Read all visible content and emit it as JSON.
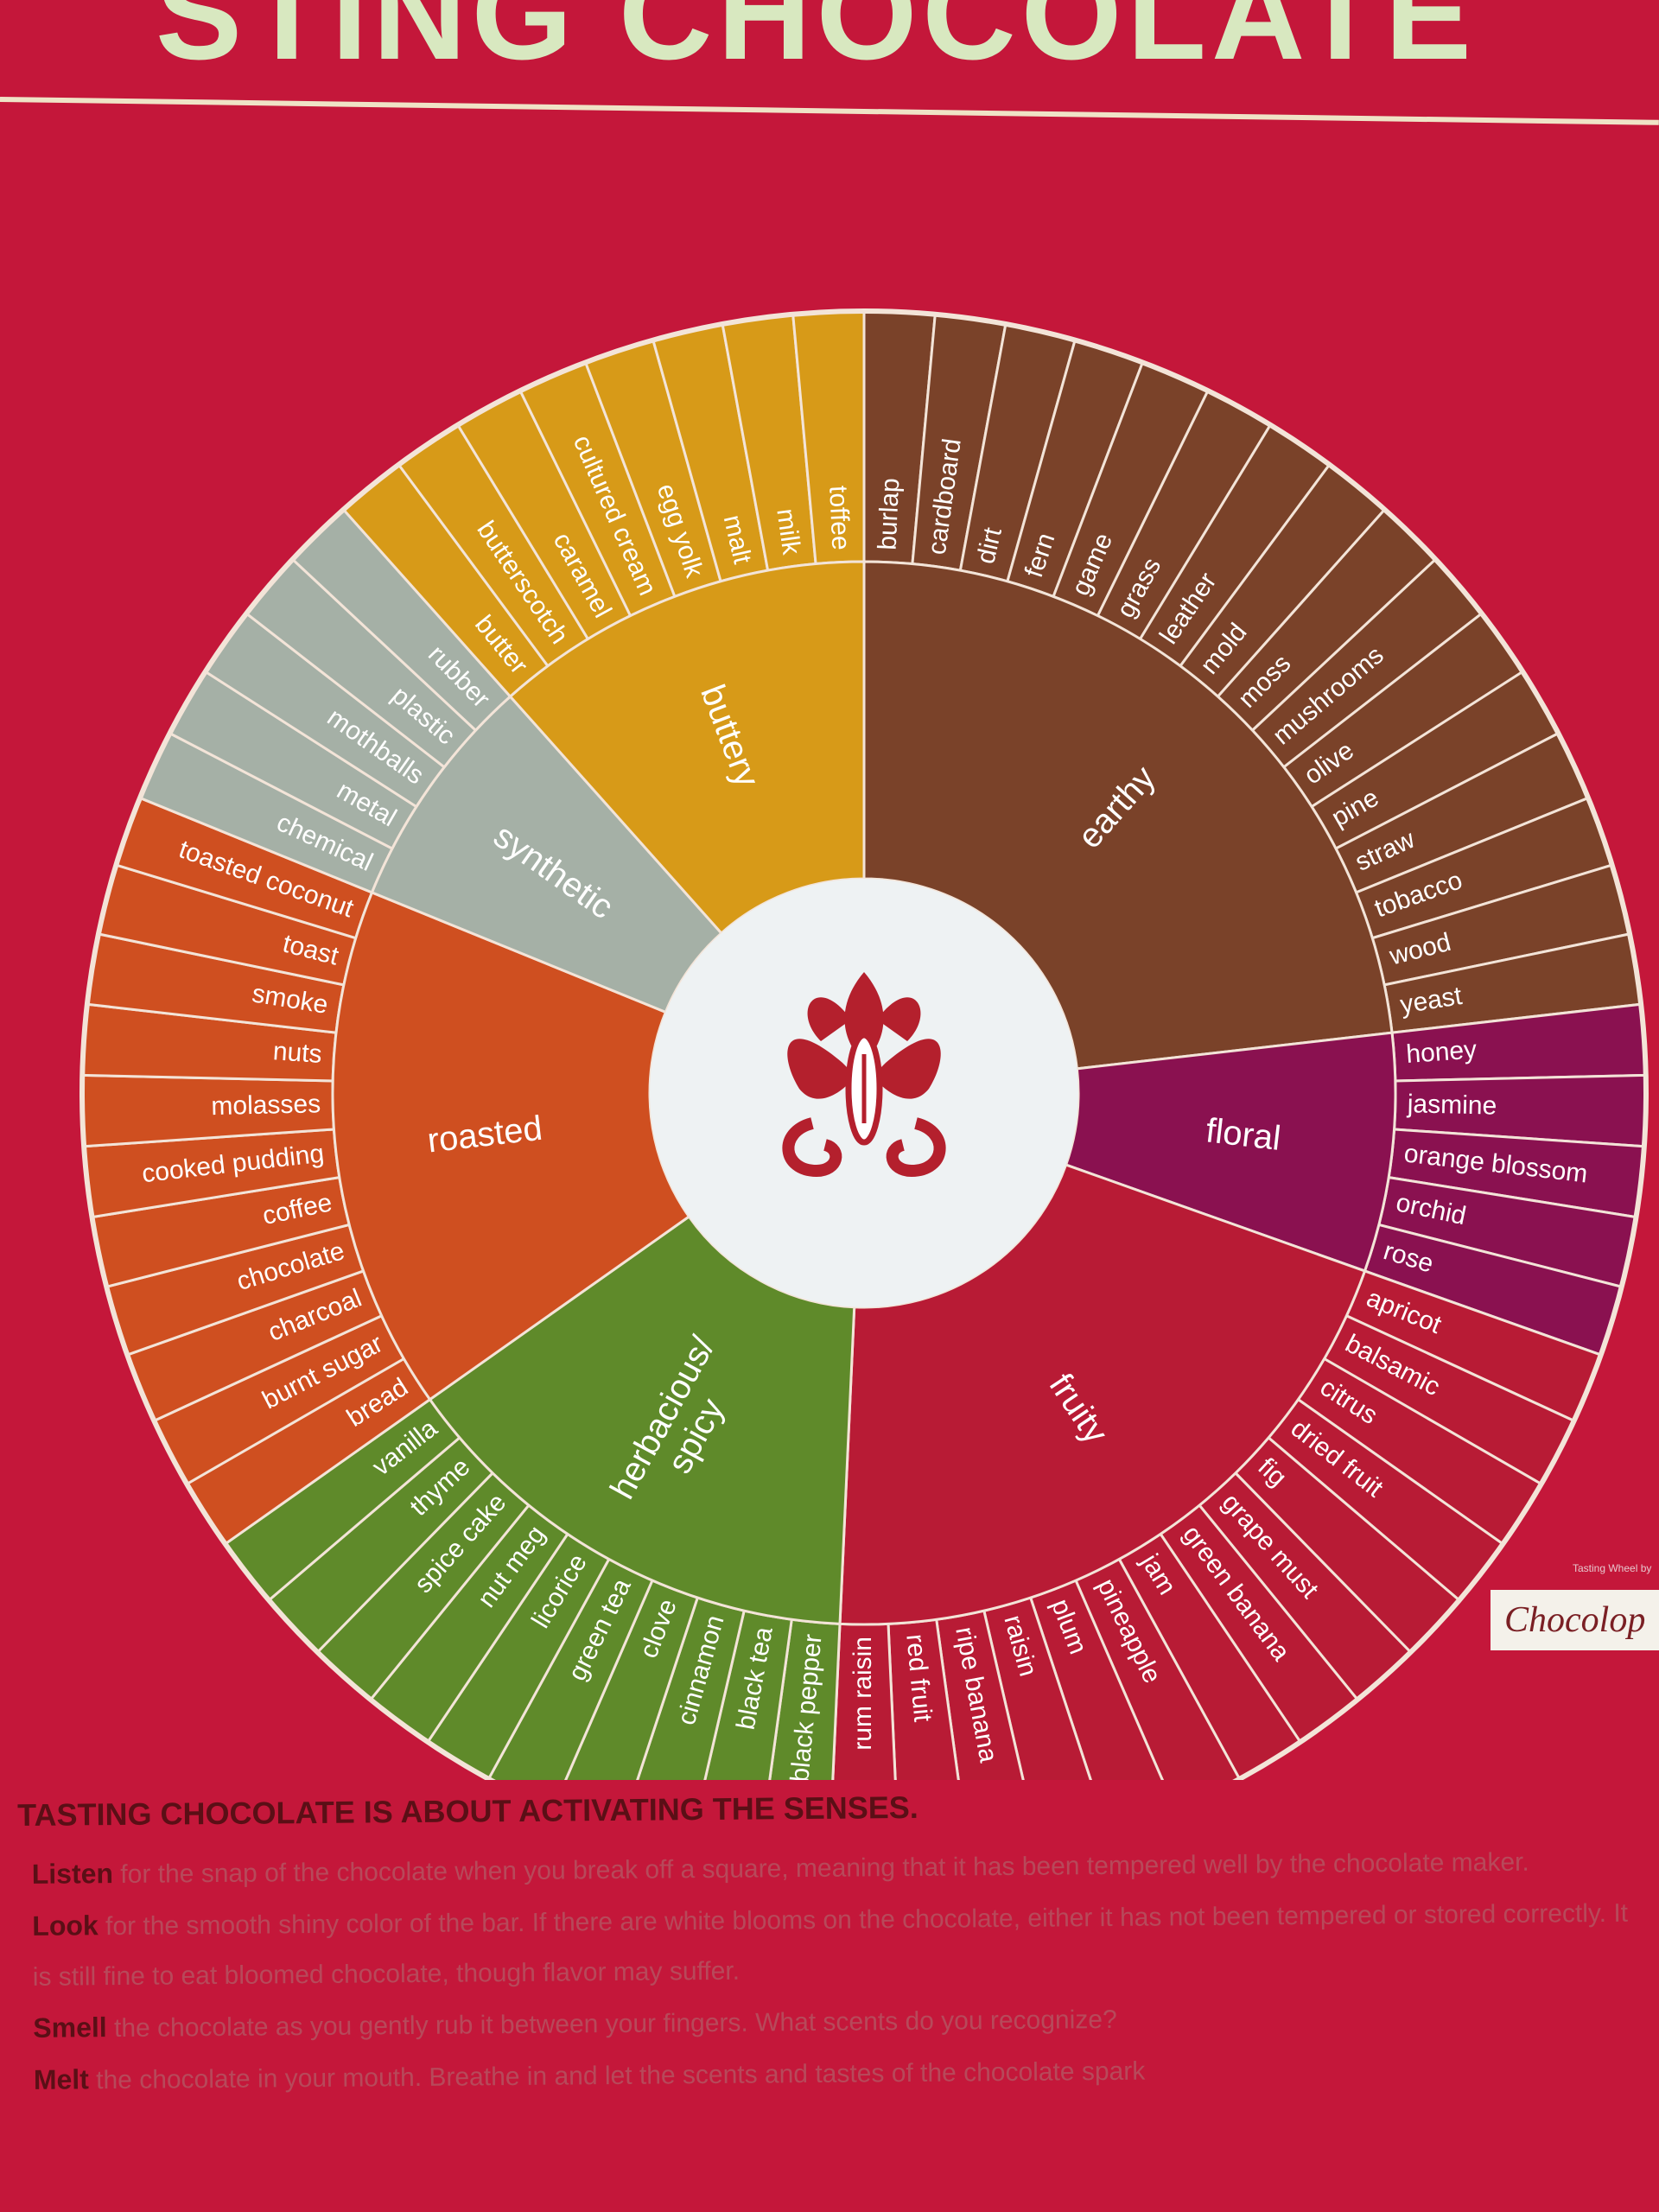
{
  "header": {
    "title_fragment": "STING CHOCOLATE"
  },
  "wheel": {
    "categories": [
      {
        "name": "earthy",
        "color": "#7a4229",
        "items": [
          "burlap",
          "cardboard",
          "dirt",
          "fern",
          "game",
          "grass",
          "leather",
          "mold",
          "moss",
          "mushrooms",
          "olive",
          "pine",
          "straw",
          "tobacco",
          "wood",
          "yeast"
        ]
      },
      {
        "name": "floral",
        "color": "#8a1150",
        "items": [
          "honey",
          "jasmine",
          "orange blossom",
          "orchid",
          "rose"
        ]
      },
      {
        "name": "fruity",
        "color": "#b81b35",
        "items": [
          "apricot",
          "balsamic",
          "citrus",
          "dried fruit",
          "fig",
          "grape must",
          "green banana",
          "jam",
          "pineapple",
          "plum",
          "raisin",
          "ripe banana",
          "red fruit",
          "rum raisin"
        ]
      },
      {
        "name": "herbacious/\nspicy",
        "color": "#5f8a2a",
        "items": [
          "black pepper",
          "black tea",
          "cinnamon",
          "clove",
          "green tea",
          "licorice",
          "nut meg",
          "spice cake",
          "thyme",
          "vanilla"
        ]
      },
      {
        "name": "roasted",
        "color": "#cf4f20",
        "items": [
          "bread",
          "burnt sugar",
          "charcoal",
          "chocolate",
          "coffee",
          "cooked pudding",
          "molasses",
          "nuts",
          "smoke",
          "toast",
          "toasted coconut"
        ]
      },
      {
        "name": "synthetic",
        "color": "#a5b0a6",
        "items": [
          "chemical",
          "metal",
          "mothballs",
          "plastic",
          "rubber"
        ]
      },
      {
        "name": "buttery",
        "color": "#d79a18",
        "items": [
          "butter",
          "butterscotch",
          "caramel",
          "cultured cream",
          "egg yolk",
          "malt",
          "milk",
          "toffee"
        ]
      }
    ]
  },
  "brand": {
    "label": "Chocolop",
    "tagline": "Tasting Wheel by"
  },
  "instructions": {
    "heading": "TASTING CHOCOLATE IS ABOUT ACTIVATING THE SENSES.",
    "listen_key": "Listen",
    "listen_text": " for the snap of the chocolate when you break off a square, meaning that it has been tempered well by the chocolate maker.",
    "look_key": "Look",
    "look_text": " for the smooth shiny color of the bar. If there are white blooms on the chocolate, either it has not been tempered or stored correctly. It is still fine to eat bloomed chocolate, though flavor may suffer.",
    "smell_key": "Smell",
    "smell_text": " the chocolate as you gently rub it between your fingers. What scents do you recognize?",
    "melt_key": "Melt",
    "melt_text": " the chocolate in your mouth. Breathe in and let the scents and tastes of the chocolate spark"
  },
  "colors": {
    "background": "#c4173a",
    "divider": "#f3e4d8",
    "center": "#eef2f3",
    "logo": "#b4202d"
  }
}
